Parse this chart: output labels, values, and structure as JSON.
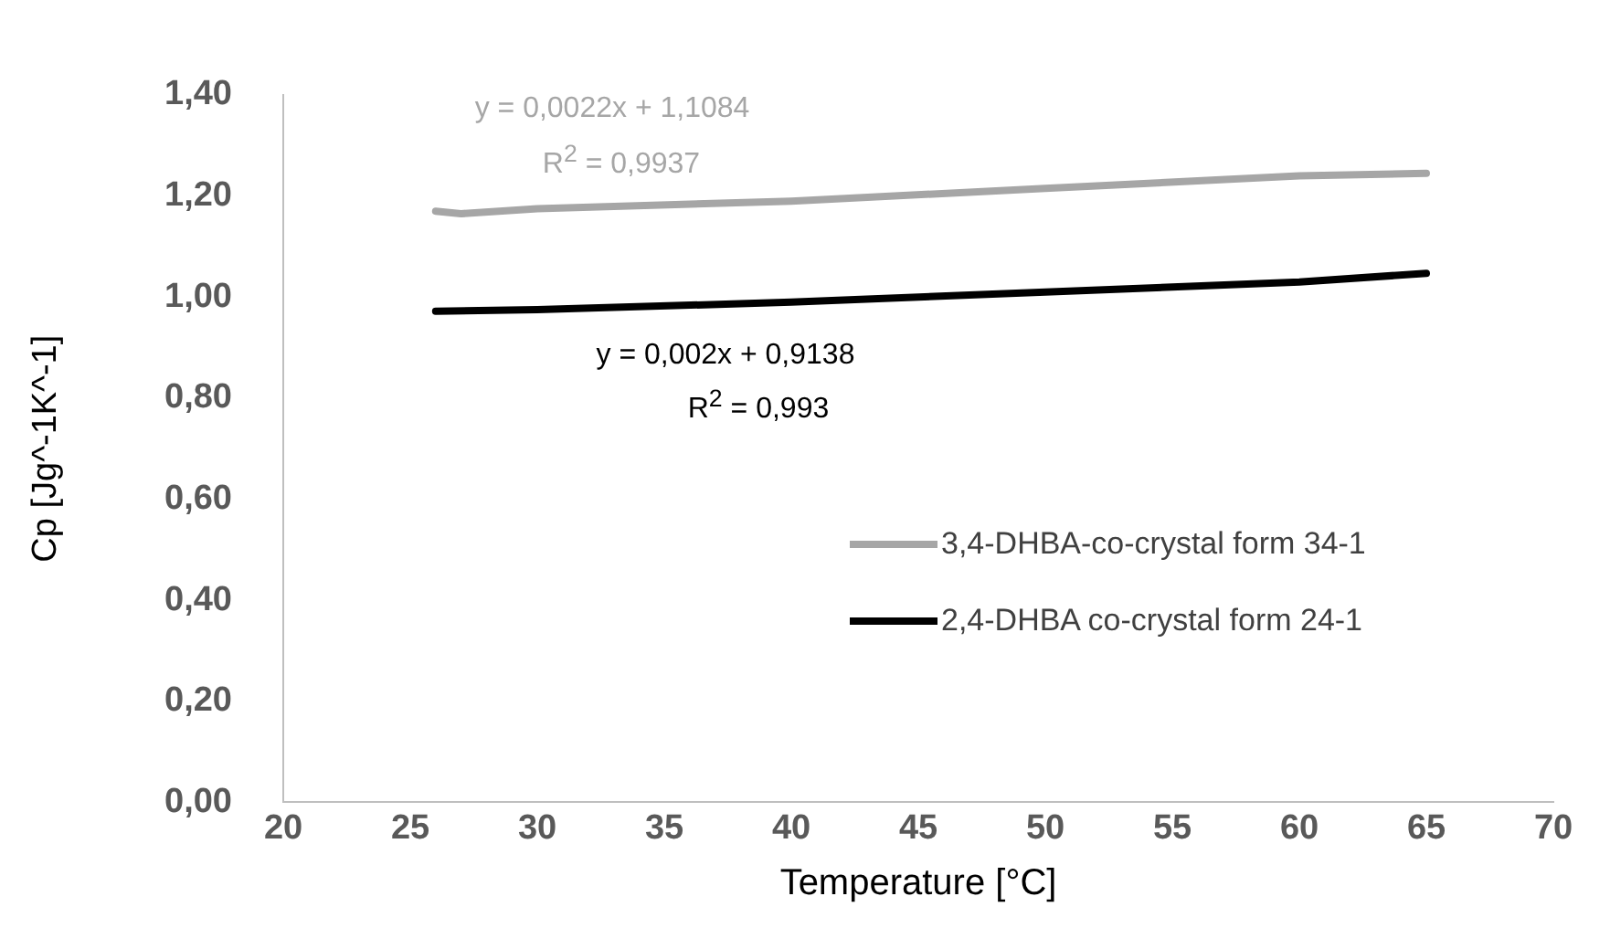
{
  "chart_data": {
    "type": "line",
    "xlabel": "Temperature [°C]",
    "ylabel": "Cp [Jg^-1K^-1]",
    "series": [
      {
        "name": "3,4-DHBA-co-crystal form 34-1",
        "color": "#a6a6a6",
        "x": [
          26,
          27,
          30,
          40,
          50,
          60,
          65
        ],
        "values": [
          1.17,
          1.165,
          1.175,
          1.19,
          1.215,
          1.24,
          1.245
        ]
      },
      {
        "name": "2,4-DHBA co-crystal form 24-1",
        "color": "#000000",
        "x": [
          26,
          30,
          40,
          50,
          60,
          65
        ],
        "values": [
          0.972,
          0.975,
          0.99,
          1.01,
          1.03,
          1.047
        ]
      }
    ],
    "xlim": [
      20,
      70
    ],
    "xticks": [
      20,
      25,
      30,
      35,
      40,
      45,
      50,
      55,
      60,
      65,
      70
    ],
    "ylim": [
      0,
      1.4
    ],
    "yticks": [
      {
        "value": 0,
        "label": "0,00"
      },
      {
        "value": 0.2,
        "label": "0,20"
      },
      {
        "value": 0.4,
        "label": "0,40"
      },
      {
        "value": 0.6,
        "label": "0,60"
      },
      {
        "value": 0.8,
        "label": "0,80"
      },
      {
        "value": 1,
        "label": "1,00"
      },
      {
        "value": 1.2,
        "label": "1,20"
      },
      {
        "value": 1.4,
        "label": "1,40"
      }
    ],
    "annotations": [
      "y = 0,0022x + 1,1084",
      "R$^{2}$ = 0,9937",
      "y = 0,002x + 0,9138",
      "R$^{2}$ = 0,993"
    ],
    "grid": false,
    "legend": "right",
    "marker": "none",
    "line_style": "solid"
  }
}
